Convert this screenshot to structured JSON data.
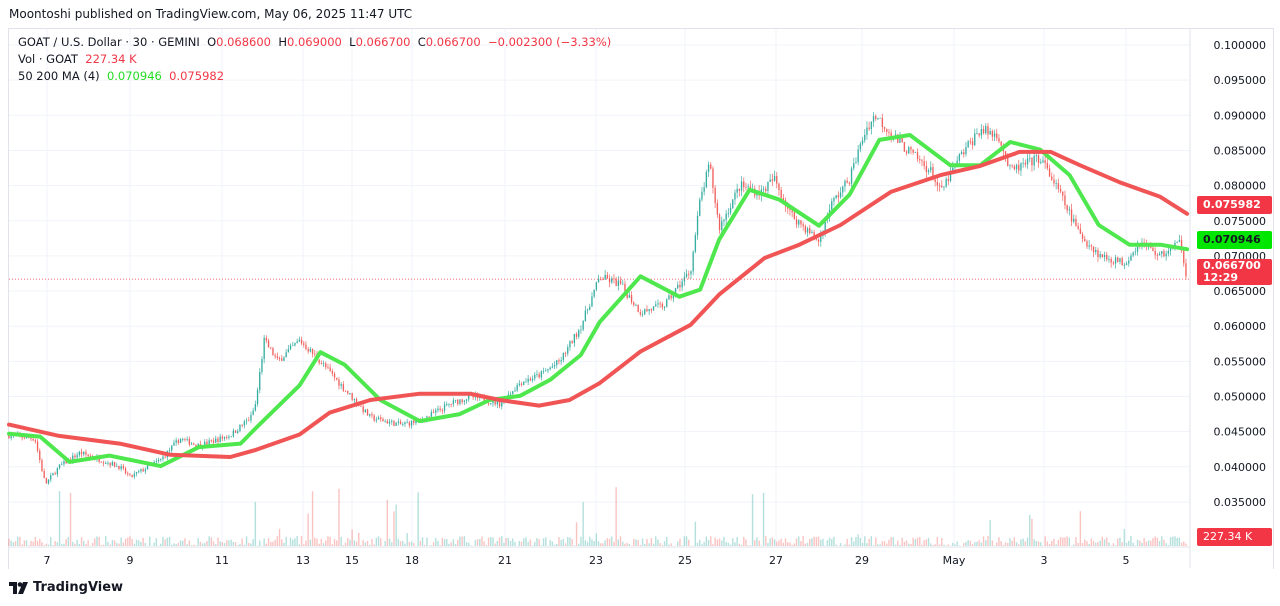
{
  "published": "Moontoshi published on TradingView.com, May 06, 2025 11:47 UTC",
  "legend": {
    "symbol": "GOAT / U.S. Dollar · 30 · GEMINI",
    "o_label": "O",
    "o": "0.068600",
    "h_label": "H",
    "h": "0.069000",
    "l_label": "L",
    "l": "0.066700",
    "c_label": "C",
    "c": "0.066700",
    "change": "−0.002300 (−3.33%)",
    "vol_label": "Vol · GOAT",
    "vol": "227.34 K",
    "ma_label": "50 200 MA (4)",
    "ma50": "0.070946",
    "ma200": "0.075982"
  },
  "tags": {
    "ma200": "0.075982",
    "ma50": "0.070946",
    "last_price": "0.066700",
    "countdown": "12:29",
    "volume": "227.34 K"
  },
  "logo": "TradingView",
  "colors": {
    "up": "#26a69a",
    "down": "#ef5350",
    "ma50": "#4ee84e",
    "ma200": "#f05454",
    "tag_red": "#f23645",
    "tag_green": "#00e600"
  },
  "chart_data": {
    "type": "candlestick",
    "ylim": [
      0.035,
      0.1
    ],
    "y_ticks": [
      "0.100000",
      "0.095000",
      "0.090000",
      "0.085000",
      "0.080000",
      "0.075000",
      "0.070000",
      "0.065000",
      "0.060000",
      "0.055000",
      "0.050000",
      "0.045000",
      "0.040000",
      "0.035000"
    ],
    "x_ticks": [
      {
        "label": "7",
        "date": "2025-04-07"
      },
      {
        "label": "9",
        "date": "2025-04-09"
      },
      {
        "label": "11",
        "date": "2025-04-11"
      },
      {
        "label": "13",
        "date": "2025-04-13"
      },
      {
        "label": "15",
        "date": "2025-04-15"
      },
      {
        "label": "18",
        "date": "2025-04-18"
      },
      {
        "label": "21",
        "date": "2025-04-21"
      },
      {
        "label": "23",
        "date": "2025-04-23"
      },
      {
        "label": "25",
        "date": "2025-04-25"
      },
      {
        "label": "27",
        "date": "2025-04-27"
      },
      {
        "label": "29",
        "date": "2025-04-29"
      },
      {
        "label": "May",
        "date": "2025-05-01"
      },
      {
        "label": "3",
        "date": "2025-05-03"
      },
      {
        "label": "5",
        "date": "2025-05-05"
      }
    ],
    "price_path": [
      [
        "2025-04-06T02:00",
        0.0445
      ],
      [
        "2025-04-06T17:00",
        0.044
      ],
      [
        "2025-04-06T23:00",
        0.0375
      ],
      [
        "2025-04-07T07:00",
        0.04
      ],
      [
        "2025-04-07T19:00",
        0.042
      ],
      [
        "2025-04-08T07:00",
        0.041
      ],
      [
        "2025-04-08T18:00",
        0.04
      ],
      [
        "2025-04-09T00:00",
        0.0385
      ],
      [
        "2025-04-09T16:00",
        0.041
      ],
      [
        "2025-04-10T02:00",
        0.044
      ],
      [
        "2025-04-10T12:00",
        0.043
      ],
      [
        "2025-04-11T05:00",
        0.0445
      ],
      [
        "2025-04-11T17:00",
        0.047
      ],
      [
        "2025-04-11T20:00",
        0.049
      ],
      [
        "2025-04-12T01:00",
        0.058
      ],
      [
        "2025-04-12T09:00",
        0.055
      ],
      [
        "2025-04-12T22:00",
        0.058
      ],
      [
        "2025-04-13T17:00",
        0.055
      ],
      [
        "2025-04-14T17:00",
        0.051
      ],
      [
        "2025-04-15T22:00",
        0.047
      ],
      [
        "2025-04-17T10:00",
        0.046
      ],
      [
        "2025-04-18T06:00",
        0.0465
      ],
      [
        "2025-04-19T06:00",
        0.049
      ],
      [
        "2025-04-19T21:00",
        0.05
      ],
      [
        "2025-04-20T20:00",
        0.049
      ],
      [
        "2025-04-21T08:00",
        0.052
      ],
      [
        "2025-04-21T18:00",
        0.053
      ],
      [
        "2025-04-22T05:00",
        0.055
      ],
      [
        "2025-04-22T16:00",
        0.06
      ],
      [
        "2025-04-23T02:00",
        0.067
      ],
      [
        "2025-04-23T13:00",
        0.066
      ],
      [
        "2025-04-24T00:00",
        0.062
      ],
      [
        "2025-04-24T13:00",
        0.063
      ],
      [
        "2025-04-25T03:00",
        0.068
      ],
      [
        "2025-04-25T08:00",
        0.078
      ],
      [
        "2025-04-25T13:00",
        0.083
      ],
      [
        "2025-04-25T18:00",
        0.074
      ],
      [
        "2025-04-26T05:00",
        0.08
      ],
      [
        "2025-04-26T16:00",
        0.079
      ],
      [
        "2025-04-26T23:00",
        0.081
      ],
      [
        "2025-04-27T08:00",
        0.076
      ],
      [
        "2025-04-28T00:00",
        0.072
      ],
      [
        "2025-04-28T06:00",
        0.077
      ],
      [
        "2025-04-28T17:00",
        0.081
      ],
      [
        "2025-04-29T02:00",
        0.088
      ],
      [
        "2025-04-29T07:00",
        0.09
      ],
      [
        "2025-04-29T20:00",
        0.086
      ],
      [
        "2025-04-30T12:00",
        0.082
      ],
      [
        "2025-04-30T17:00",
        0.079
      ],
      [
        "2025-05-01T03:00",
        0.084
      ],
      [
        "2025-05-01T14:00",
        0.088
      ],
      [
        "2025-05-02T00:00",
        0.087
      ],
      [
        "2025-05-02T06:00",
        0.082
      ],
      [
        "2025-05-02T22:00",
        0.084
      ],
      [
        "2025-05-03T09:00",
        0.079
      ],
      [
        "2025-05-03T21:00",
        0.073
      ],
      [
        "2025-05-04T09:00",
        0.07
      ],
      [
        "2025-05-04T23:00",
        0.069
      ],
      [
        "2025-05-05T08:00",
        0.072
      ],
      [
        "2025-05-05T20:00",
        0.07
      ],
      [
        "2025-05-06T08:00",
        0.072
      ],
      [
        "2025-05-06T11:47",
        0.0667
      ]
    ],
    "series": [
      {
        "name": "MA 50",
        "color": "#4ee84e",
        "points": [
          [
            "2025-04-06T02:00",
            0.0447
          ],
          [
            "2025-04-06T20:00",
            0.0443
          ],
          [
            "2025-04-07T13:00",
            0.0407
          ],
          [
            "2025-04-08T12:00",
            0.0416
          ],
          [
            "2025-04-09T16:00",
            0.0401
          ],
          [
            "2025-04-10T12:00",
            0.0428
          ],
          [
            "2025-04-11T11:00",
            0.0433
          ],
          [
            "2025-04-11T20:00",
            0.0455
          ],
          [
            "2025-04-12T22:00",
            0.0516
          ],
          [
            "2025-04-13T17:00",
            0.0563
          ],
          [
            "2025-04-14T17:00",
            0.0545
          ],
          [
            "2025-04-16T10:00",
            0.0495
          ],
          [
            "2025-04-18T06:00",
            0.0465
          ],
          [
            "2025-04-19T13:00",
            0.0475
          ],
          [
            "2025-04-20T12:00",
            0.0495
          ],
          [
            "2025-04-21T08:00",
            0.0501
          ],
          [
            "2025-04-22T00:00",
            0.0524
          ],
          [
            "2025-04-22T16:00",
            0.0559
          ],
          [
            "2025-04-23T02:00",
            0.0606
          ],
          [
            "2025-04-24T00:00",
            0.0671
          ],
          [
            "2025-04-24T21:00",
            0.0642
          ],
          [
            "2025-04-25T08:00",
            0.0652
          ],
          [
            "2025-04-25T18:00",
            0.0723
          ],
          [
            "2025-04-26T10:00",
            0.0794
          ],
          [
            "2025-04-27T02:00",
            0.078
          ],
          [
            "2025-04-28T00:00",
            0.0743
          ],
          [
            "2025-04-28T17:00",
            0.0787
          ],
          [
            "2025-04-29T09:00",
            0.0865
          ],
          [
            "2025-04-30T01:00",
            0.0872
          ],
          [
            "2025-04-30T22:00",
            0.0829
          ],
          [
            "2025-05-01T14:00",
            0.0829
          ],
          [
            "2025-05-02T06:00",
            0.0862
          ],
          [
            "2025-05-02T22:00",
            0.0851
          ],
          [
            "2025-05-03T15:00",
            0.0815
          ],
          [
            "2025-05-04T08:00",
            0.0744
          ],
          [
            "2025-05-05T02:00",
            0.0716
          ],
          [
            "2025-05-05T20:00",
            0.0716
          ],
          [
            "2025-05-06T11:47",
            0.070946
          ]
        ]
      },
      {
        "name": "MA 200",
        "color": "#f05454",
        "points": [
          [
            "2025-04-06T02:00",
            0.046
          ],
          [
            "2025-04-07T07:00",
            0.0444
          ],
          [
            "2025-04-08T18:00",
            0.0433
          ],
          [
            "2025-04-09T21:00",
            0.0417
          ],
          [
            "2025-04-11T05:00",
            0.0414
          ],
          [
            "2025-04-11T20:00",
            0.0424
          ],
          [
            "2025-04-12T22:00",
            0.0446
          ],
          [
            "2025-04-14T02:00",
            0.0477
          ],
          [
            "2025-04-15T22:00",
            0.0495
          ],
          [
            "2025-04-18T06:00",
            0.0504
          ],
          [
            "2025-04-19T21:00",
            0.0504
          ],
          [
            "2025-04-20T20:00",
            0.0495
          ],
          [
            "2025-04-21T18:00",
            0.0487
          ],
          [
            "2025-04-22T10:00",
            0.0495
          ],
          [
            "2025-04-23T02:00",
            0.0519
          ],
          [
            "2025-04-24T00:00",
            0.0564
          ],
          [
            "2025-04-25T03:00",
            0.0602
          ],
          [
            "2025-04-25T18:00",
            0.0645
          ],
          [
            "2025-04-26T18:00",
            0.0697
          ],
          [
            "2025-04-27T13:00",
            0.0716
          ],
          [
            "2025-04-28T12:00",
            0.0744
          ],
          [
            "2025-04-29T15:00",
            0.0791
          ],
          [
            "2025-04-30T17:00",
            0.0815
          ],
          [
            "2025-05-01T14:00",
            0.0828
          ],
          [
            "2025-05-02T11:00",
            0.0848
          ],
          [
            "2025-05-03T04:00",
            0.0848
          ],
          [
            "2025-05-03T21:00",
            0.0829
          ],
          [
            "2025-05-04T20:00",
            0.0805
          ],
          [
            "2025-05-05T20:00",
            0.0784
          ],
          [
            "2025-05-06T11:47",
            0.075982
          ]
        ]
      }
    ]
  }
}
